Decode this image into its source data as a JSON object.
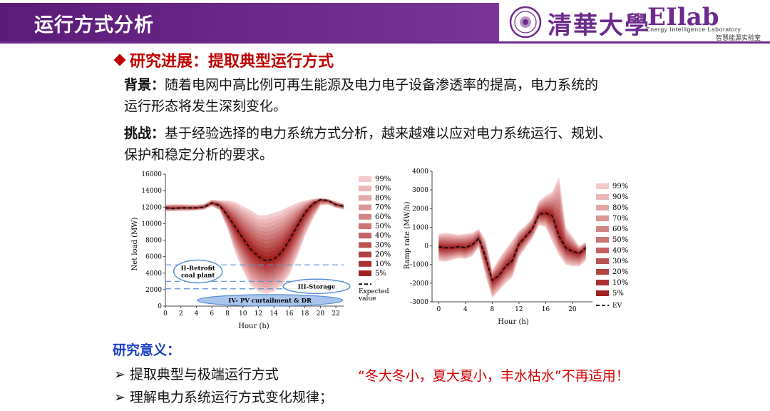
{
  "header": {
    "title": "运行方式分析",
    "university": "清華大學",
    "lab_logo": "EIlab",
    "lab_name_en": "Energy Intelligence Laboratory",
    "lab_name_cn": "智慧能源实验室"
  },
  "section": {
    "heading": "研究进展：提取典型运行方式",
    "background_label": "背景：",
    "background_text_1": "随着电网中高比例可再生能源及电力电子设备渗透率的提高，电力系统的",
    "background_text_2": "运行形态将发生深刻变化。",
    "challenge_label": "挑战：",
    "challenge_text_1": "基于经验选择的电力系统方式分析，越来越难以应对电力系统运行、规划、",
    "challenge_text_2": "保护和稳定分析的要求。"
  },
  "significance": {
    "heading": "研究意义：",
    "bullets": [
      "提取典型与极端运行方式",
      "理解电力系统运行方式变化规律；"
    ],
    "quote": "“冬大冬小，夏大夏小，丰水枯水”不再适用！"
  },
  "chart_data": [
    {
      "type": "area",
      "xlabel": "Hour (h)",
      "ylabel": "Net load  (MW)",
      "xlim": [
        0,
        23
      ],
      "ylim": [
        0,
        16000
      ],
      "x_ticks": [
        0,
        2,
        4,
        6,
        8,
        10,
        12,
        14,
        16,
        18,
        20,
        22
      ],
      "y_ticks": [
        0,
        2000,
        4000,
        6000,
        8000,
        10000,
        12000,
        14000,
        16000
      ],
      "x": [
        0,
        1,
        2,
        3,
        4,
        5,
        6,
        7,
        8,
        9,
        10,
        11,
        12,
        13,
        14,
        15,
        16,
        17,
        18,
        19,
        20,
        21,
        22,
        23
      ],
      "expected": [
        11900,
        11850,
        11900,
        11900,
        11900,
        12000,
        12500,
        12200,
        11000,
        9600,
        8200,
        6900,
        6000,
        5500,
        5700,
        6500,
        8000,
        9700,
        11300,
        12400,
        12900,
        12800,
        12300,
        12100
      ],
      "band_upper": [
        12300,
        12350,
        12350,
        12300,
        12300,
        12400,
        12900,
        12800,
        12800,
        12600,
        12100,
        11600,
        11000,
        11000,
        11300,
        11600,
        12100,
        12500,
        12800,
        13000,
        13100,
        13000,
        12700,
        12400
      ],
      "band_lower": [
        11500,
        11500,
        11550,
        11550,
        11600,
        11700,
        12100,
        11600,
        9400,
        6500,
        4300,
        2500,
        1800,
        1500,
        1800,
        2500,
        3800,
        6000,
        8500,
        10500,
        12200,
        12300,
        11900,
        11700
      ],
      "percentiles": [
        "99%",
        "90%",
        "80%",
        "70%",
        "60%",
        "50%",
        "40%",
        "30%",
        "20%",
        "10%",
        "5%"
      ],
      "legend_extra": "Expected value",
      "annotations": [
        {
          "label": "II-Retrofit coal plant",
          "y": 5000
        },
        {
          "label": "III-Storage",
          "y": 3000
        },
        {
          "label": "IV- PV curtailment & DR",
          "y": 800
        }
      ],
      "dashed_levels": [
        5000,
        3000,
        2100
      ]
    },
    {
      "type": "area",
      "xlabel": "Hour (h)",
      "ylabel": "Ramp rate (MW/h)",
      "xlim": [
        -1,
        23
      ],
      "ylim": [
        -3000,
        4000
      ],
      "x_ticks": [
        0,
        4,
        8,
        12,
        16,
        20
      ],
      "y_ticks": [
        -3000,
        -2000,
        -1000,
        0,
        1000,
        2000,
        3000,
        4000
      ],
      "x": [
        0,
        1,
        2,
        3,
        4,
        5,
        6,
        7,
        8,
        9,
        10,
        11,
        12,
        13,
        14,
        15,
        16,
        17,
        18,
        19,
        20,
        21,
        22
      ],
      "expected": [
        -50,
        -100,
        -100,
        -50,
        -100,
        50,
        400,
        -600,
        -1850,
        -1600,
        -1100,
        -800,
        100,
        500,
        900,
        1700,
        1750,
        1600,
        500,
        -100,
        -300,
        -400,
        -100
      ],
      "band_upper": [
        650,
        700,
        650,
        600,
        650,
        700,
        900,
        300,
        -1300,
        -700,
        -200,
        300,
        800,
        1100,
        1500,
        2400,
        2700,
        2900,
        3700,
        1000,
        500,
        0,
        200
      ],
      "band_lower": [
        -800,
        -850,
        -750,
        -650,
        -700,
        -550,
        -100,
        -1600,
        -2800,
        -2400,
        -2000,
        -1700,
        -600,
        -100,
        400,
        1100,
        1000,
        200,
        -500,
        -1000,
        -1100,
        -1100,
        -800
      ],
      "percentiles": [
        "99%",
        "90%",
        "80%",
        "70%",
        "60%",
        "50%",
        "40%",
        "30%",
        "20%",
        "10%",
        "5%"
      ],
      "legend_extra": "EV"
    }
  ],
  "colors": {
    "header_bg": "#6d2a8c",
    "accent_red": "#c00000",
    "blue": "#1c3fc4",
    "band_light": "#f3c9c9",
    "band_dark": "#a32020"
  }
}
